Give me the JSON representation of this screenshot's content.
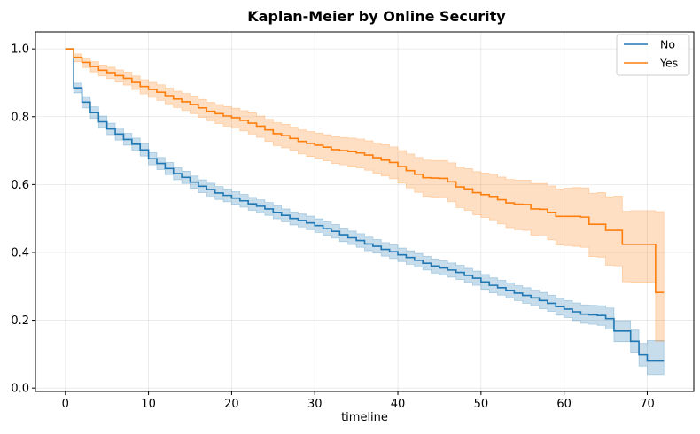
{
  "chart_data": {
    "type": "line",
    "subtype": "step",
    "title": "Kaplan-Meier by Online Security",
    "xlabel": "timeline",
    "ylabel": "",
    "xlim": [
      -3.6,
      75.6
    ],
    "ylim": [
      -0.01,
      1.05
    ],
    "xticks": [
      0,
      10,
      20,
      30,
      40,
      50,
      60,
      70
    ],
    "yticks": [
      0.0,
      0.2,
      0.4,
      0.6,
      0.8,
      1.0
    ],
    "grid": true,
    "legend_position": "top-right",
    "series": [
      {
        "name": "No",
        "color": "#1f77b4",
        "ci_color": "#1f77b4",
        "x": [
          0,
          1,
          2,
          3,
          4,
          5,
          6,
          7,
          8,
          9,
          10,
          11,
          12,
          13,
          14,
          15,
          16,
          17,
          18,
          19,
          20,
          21,
          22,
          23,
          24,
          25,
          26,
          27,
          28,
          29,
          30,
          31,
          32,
          33,
          34,
          35,
          36,
          37,
          38,
          39,
          40,
          41,
          42,
          43,
          44,
          45,
          46,
          47,
          48,
          49,
          50,
          51,
          52,
          53,
          54,
          55,
          56,
          57,
          58,
          59,
          60,
          61,
          62,
          63,
          64,
          65,
          66,
          67,
          68,
          69,
          70,
          71,
          72
        ],
        "values": [
          1.0,
          0.885,
          0.843,
          0.812,
          0.785,
          0.764,
          0.749,
          0.733,
          0.719,
          0.702,
          0.676,
          0.662,
          0.647,
          0.632,
          0.621,
          0.607,
          0.595,
          0.585,
          0.575,
          0.568,
          0.56,
          0.552,
          0.543,
          0.536,
          0.528,
          0.518,
          0.509,
          0.5,
          0.494,
          0.487,
          0.479,
          0.47,
          0.462,
          0.452,
          0.443,
          0.435,
          0.425,
          0.418,
          0.409,
          0.402,
          0.393,
          0.385,
          0.377,
          0.368,
          0.36,
          0.354,
          0.348,
          0.341,
          0.332,
          0.324,
          0.313,
          0.303,
          0.296,
          0.288,
          0.28,
          0.273,
          0.266,
          0.258,
          0.25,
          0.24,
          0.233,
          0.225,
          0.218,
          0.216,
          0.214,
          0.205,
          0.168,
          0.168,
          0.138,
          0.098,
          0.08,
          0.08,
          0.08
        ],
        "ci_lower": [
          1.0,
          0.87,
          0.826,
          0.795,
          0.768,
          0.747,
          0.731,
          0.716,
          0.701,
          0.684,
          0.658,
          0.644,
          0.629,
          0.614,
          0.603,
          0.589,
          0.576,
          0.566,
          0.556,
          0.549,
          0.541,
          0.533,
          0.524,
          0.517,
          0.509,
          0.499,
          0.49,
          0.481,
          0.475,
          0.467,
          0.459,
          0.45,
          0.442,
          0.432,
          0.423,
          0.415,
          0.405,
          0.398,
          0.389,
          0.382,
          0.373,
          0.365,
          0.357,
          0.348,
          0.339,
          0.333,
          0.327,
          0.32,
          0.311,
          0.303,
          0.291,
          0.281,
          0.274,
          0.266,
          0.258,
          0.25,
          0.243,
          0.234,
          0.226,
          0.215,
          0.208,
          0.199,
          0.191,
          0.188,
          0.185,
          0.174,
          0.137,
          0.137,
          0.105,
          0.065,
          0.04,
          0.04,
          0.04
        ],
        "ci_upper": [
          1.0,
          0.899,
          0.859,
          0.829,
          0.802,
          0.781,
          0.767,
          0.751,
          0.737,
          0.72,
          0.694,
          0.68,
          0.665,
          0.65,
          0.639,
          0.625,
          0.614,
          0.604,
          0.594,
          0.587,
          0.579,
          0.571,
          0.562,
          0.555,
          0.547,
          0.537,
          0.528,
          0.519,
          0.513,
          0.507,
          0.499,
          0.49,
          0.482,
          0.472,
          0.463,
          0.455,
          0.445,
          0.438,
          0.429,
          0.422,
          0.413,
          0.405,
          0.397,
          0.388,
          0.381,
          0.375,
          0.369,
          0.362,
          0.353,
          0.345,
          0.335,
          0.325,
          0.318,
          0.31,
          0.302,
          0.296,
          0.289,
          0.282,
          0.274,
          0.265,
          0.258,
          0.251,
          0.245,
          0.244,
          0.243,
          0.236,
          0.199,
          0.199,
          0.171,
          0.132,
          0.14,
          0.14,
          0.14
        ]
      },
      {
        "name": "Yes",
        "color": "#ff7f0e",
        "ci_color": "#ff7f0e",
        "x": [
          0,
          1,
          2,
          3,
          4,
          5,
          6,
          7,
          8,
          9,
          10,
          11,
          12,
          13,
          14,
          15,
          16,
          17,
          18,
          19,
          20,
          21,
          22,
          23,
          24,
          25,
          26,
          27,
          28,
          29,
          30,
          31,
          32,
          33,
          34,
          35,
          36,
          37,
          38,
          39,
          40,
          41,
          42,
          43,
          44,
          45,
          46,
          47,
          48,
          49,
          50,
          51,
          52,
          53,
          54,
          55,
          56,
          57,
          58,
          59,
          60,
          61,
          62,
          63,
          64,
          65,
          66,
          67,
          68,
          69,
          70,
          71,
          72
        ],
        "values": [
          1.0,
          0.975,
          0.96,
          0.948,
          0.937,
          0.93,
          0.921,
          0.913,
          0.901,
          0.889,
          0.88,
          0.872,
          0.862,
          0.852,
          0.844,
          0.836,
          0.826,
          0.816,
          0.809,
          0.802,
          0.797,
          0.789,
          0.781,
          0.772,
          0.761,
          0.75,
          0.744,
          0.736,
          0.727,
          0.721,
          0.716,
          0.71,
          0.703,
          0.7,
          0.697,
          0.693,
          0.687,
          0.679,
          0.672,
          0.665,
          0.653,
          0.641,
          0.63,
          0.62,
          0.619,
          0.618,
          0.608,
          0.593,
          0.587,
          0.576,
          0.57,
          0.565,
          0.555,
          0.546,
          0.542,
          0.541,
          0.528,
          0.527,
          0.518,
          0.506,
          0.506,
          0.506,
          0.504,
          0.483,
          0.483,
          0.465,
          0.465,
          0.424,
          0.424,
          0.424,
          0.424,
          0.282,
          0.282
        ],
        "ci_lower": [
          1.0,
          0.962,
          0.945,
          0.932,
          0.92,
          0.912,
          0.902,
          0.893,
          0.88,
          0.867,
          0.857,
          0.848,
          0.838,
          0.827,
          0.818,
          0.809,
          0.798,
          0.788,
          0.78,
          0.772,
          0.766,
          0.758,
          0.749,
          0.739,
          0.727,
          0.715,
          0.708,
          0.7,
          0.69,
          0.683,
          0.677,
          0.67,
          0.662,
          0.658,
          0.654,
          0.649,
          0.642,
          0.633,
          0.625,
          0.617,
          0.604,
          0.59,
          0.577,
          0.565,
          0.563,
          0.561,
          0.549,
          0.532,
          0.524,
          0.511,
          0.503,
          0.496,
          0.484,
          0.473,
          0.467,
          0.465,
          0.45,
          0.448,
          0.437,
          0.422,
          0.42,
          0.418,
          0.415,
          0.388,
          0.386,
          0.362,
          0.36,
          0.313,
          0.312,
          0.312,
          0.312,
          0.138,
          0.138
        ],
        "ci_upper": [
          1.0,
          0.985,
          0.972,
          0.962,
          0.952,
          0.946,
          0.938,
          0.931,
          0.92,
          0.909,
          0.901,
          0.894,
          0.884,
          0.875,
          0.868,
          0.861,
          0.851,
          0.842,
          0.836,
          0.83,
          0.825,
          0.818,
          0.811,
          0.802,
          0.792,
          0.782,
          0.777,
          0.769,
          0.761,
          0.756,
          0.752,
          0.747,
          0.741,
          0.739,
          0.737,
          0.734,
          0.729,
          0.722,
          0.717,
          0.711,
          0.7,
          0.69,
          0.68,
          0.672,
          0.671,
          0.671,
          0.664,
          0.651,
          0.647,
          0.638,
          0.634,
          0.63,
          0.622,
          0.615,
          0.613,
          0.613,
          0.603,
          0.603,
          0.596,
          0.587,
          0.589,
          0.591,
          0.59,
          0.574,
          0.576,
          0.564,
          0.566,
          0.521,
          0.523,
          0.523,
          0.523,
          0.52,
          0.52
        ]
      }
    ]
  }
}
